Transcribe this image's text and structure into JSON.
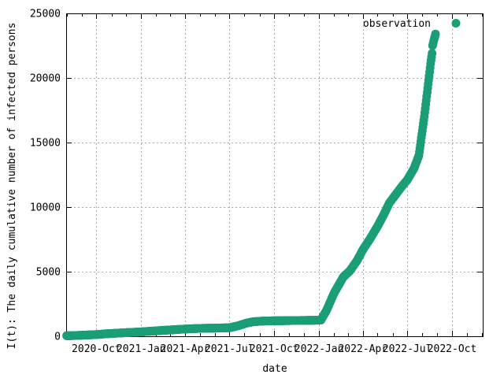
{
  "window": {
    "background": "#ffffff"
  },
  "chart_data": {
    "type": "scatter",
    "title": "",
    "xlabel": "date",
    "ylabel": "I(t): The daily cumulative number of infected persons",
    "legend_label": "observation",
    "legend_position": "top-right-inside",
    "marker": "filled-circle",
    "marker_color": "#1b9e77",
    "marker_radius_px": 5.5,
    "grid": true,
    "grid_color": "#aaaaaa",
    "axis_color": "#000000",
    "border": true,
    "ticks": "inward-mirrored",
    "xlim": [
      "2020-07-31",
      "2022-12-03"
    ],
    "ylim": [
      0,
      25000
    ],
    "x_major_ticks": [
      {
        "date": "2020-10-01",
        "label": "2020-Oct"
      },
      {
        "date": "2021-01-01",
        "label": "2021-Jan"
      },
      {
        "date": "2021-04-01",
        "label": "2021-Apr"
      },
      {
        "date": "2021-07-01",
        "label": "2021-Jul"
      },
      {
        "date": "2021-10-01",
        "label": "2021-Oct"
      },
      {
        "date": "2022-01-01",
        "label": "2022-Jan"
      },
      {
        "date": "2022-04-01",
        "label": "2022-Apr"
      },
      {
        "date": "2022-07-01",
        "label": "2022-Jul"
      },
      {
        "date": "2022-10-01",
        "label": "2022-Oct"
      }
    ],
    "x_minor_tick_interval": "1 month",
    "y_major_ticks": [
      0,
      5000,
      10000,
      15000,
      20000,
      25000
    ],
    "series": [
      {
        "name": "observation",
        "display_interpolation": "daily",
        "points": [
          [
            "2020-08-01",
            40
          ],
          [
            "2020-08-20",
            60
          ],
          [
            "2020-09-10",
            95
          ],
          [
            "2020-10-01",
            130
          ],
          [
            "2020-10-20",
            190
          ],
          [
            "2020-11-10",
            235
          ],
          [
            "2020-12-01",
            280
          ],
          [
            "2021-01-01",
            340
          ],
          [
            "2021-02-01",
            420
          ],
          [
            "2021-03-01",
            490
          ],
          [
            "2021-04-01",
            560
          ],
          [
            "2021-05-01",
            610
          ],
          [
            "2021-06-01",
            630
          ],
          [
            "2021-07-01",
            660
          ],
          [
            "2021-07-20",
            820
          ],
          [
            "2021-08-05",
            1020
          ],
          [
            "2021-08-20",
            1130
          ],
          [
            "2021-09-10",
            1180
          ],
          [
            "2021-10-01",
            1200
          ],
          [
            "2021-11-01",
            1215
          ],
          [
            "2021-12-01",
            1225
          ],
          [
            "2022-01-05",
            1250
          ],
          [
            "2022-01-17",
            2050
          ],
          [
            "2022-02-01",
            3350
          ],
          [
            "2022-02-20",
            4600
          ],
          [
            "2022-03-05",
            5050
          ],
          [
            "2022-03-20",
            5850
          ],
          [
            "2022-04-01",
            6700
          ],
          [
            "2022-04-15",
            7500
          ],
          [
            "2022-05-01",
            8500
          ],
          [
            "2022-05-15",
            9500
          ],
          [
            "2022-05-25",
            10300
          ],
          [
            "2022-06-10",
            11100
          ],
          [
            "2022-06-20",
            11600
          ],
          [
            "2022-07-01",
            12100
          ],
          [
            "2022-07-15",
            13000
          ],
          [
            "2022-07-25",
            14000
          ],
          [
            "2022-08-05",
            17000
          ],
          [
            "2022-08-12",
            19200
          ],
          [
            "2022-08-18",
            21100
          ],
          [
            "2022-08-21",
            21900
          ],
          [
            "2022-08-22",
            22500
          ],
          [
            "2022-08-24",
            22800
          ],
          [
            "2022-08-26",
            23100
          ],
          [
            "2022-08-28",
            23400
          ]
        ]
      }
    ]
  }
}
